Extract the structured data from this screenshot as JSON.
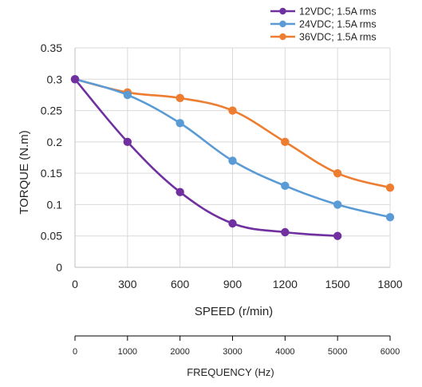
{
  "chart_data": {
    "type": "line",
    "xlabel": "SPEED (r/min)",
    "ylabel": "TORQUE (N.m)",
    "x": [
      0,
      300,
      600,
      900,
      1200,
      1500,
      1800
    ],
    "x_ticks": [
      "0",
      "300",
      "600",
      "900",
      "1200",
      "1500",
      "1800"
    ],
    "y_ticks": [
      "0",
      "0.05",
      "0.1",
      "0.15",
      "0.2",
      "0.25",
      "0.3",
      "0.35"
    ],
    "ylim": [
      0,
      0.35
    ],
    "xlim": [
      0,
      1800
    ],
    "grid": true,
    "legend_position": "top-right",
    "series": [
      {
        "name": "12VDC; 1.5A rms",
        "color": "#7030a0",
        "values": [
          0.3,
          0.2,
          0.12,
          0.07,
          0.056,
          0.05,
          null
        ]
      },
      {
        "name": "24VDC; 1.5A rms",
        "color": "#5b9bd5",
        "values": [
          0.3,
          0.275,
          0.23,
          0.17,
          0.13,
          0.1,
          0.08
        ]
      },
      {
        "name": "36VDC; 1.5A rms",
        "color": "#ed7d31",
        "values": [
          0.3,
          0.279,
          0.27,
          0.25,
          0.2,
          0.15,
          0.127
        ]
      }
    ],
    "secondary_axis": {
      "label": "FREQUENCY (Hz)",
      "ticks": [
        "0",
        "1000",
        "2000",
        "3000",
        "4000",
        "5000",
        "6000"
      ]
    }
  }
}
